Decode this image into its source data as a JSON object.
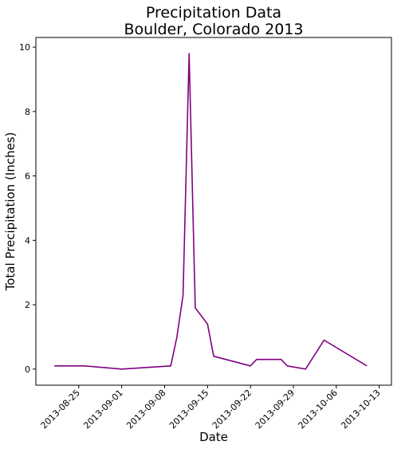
{
  "chart_data": {
    "type": "line",
    "title": "Precipitation Data",
    "subtitle": "Boulder, Colorado 2013",
    "xlabel": "Date",
    "ylabel": "Total Precipitation (Inches)",
    "x_ticks": [
      "2013-08-25",
      "2013-09-01",
      "2013-09-08",
      "2013-09-15",
      "2013-09-22",
      "2013-09-29",
      "2013-10-06",
      "2013-10-13"
    ],
    "y_ticks": [
      0,
      2,
      4,
      6,
      8,
      10
    ],
    "xlim": [
      "2013-08-18",
      "2013-10-15"
    ],
    "ylim": [
      -0.5,
      10.3
    ],
    "grid": false,
    "series": [
      {
        "color": "#800080",
        "points": [
          {
            "x": "2013-08-21",
            "y": 0.1
          },
          {
            "x": "2013-08-26",
            "y": 0.1
          },
          {
            "x": "2013-09-01",
            "y": 0.0
          },
          {
            "x": "2013-09-09",
            "y": 0.1
          },
          {
            "x": "2013-09-10",
            "y": 1.0
          },
          {
            "x": "2013-09-11",
            "y": 2.3
          },
          {
            "x": "2013-09-12",
            "y": 9.8
          },
          {
            "x": "2013-09-13",
            "y": 1.9
          },
          {
            "x": "2013-09-15",
            "y": 1.4
          },
          {
            "x": "2013-09-16",
            "y": 0.4
          },
          {
            "x": "2013-09-22",
            "y": 0.1
          },
          {
            "x": "2013-09-23",
            "y": 0.3
          },
          {
            "x": "2013-09-27",
            "y": 0.3
          },
          {
            "x": "2013-09-28",
            "y": 0.1
          },
          {
            "x": "2013-10-01",
            "y": 0.0
          },
          {
            "x": "2013-10-04",
            "y": 0.9
          },
          {
            "x": "2013-10-11",
            "y": 0.1
          }
        ]
      }
    ]
  }
}
